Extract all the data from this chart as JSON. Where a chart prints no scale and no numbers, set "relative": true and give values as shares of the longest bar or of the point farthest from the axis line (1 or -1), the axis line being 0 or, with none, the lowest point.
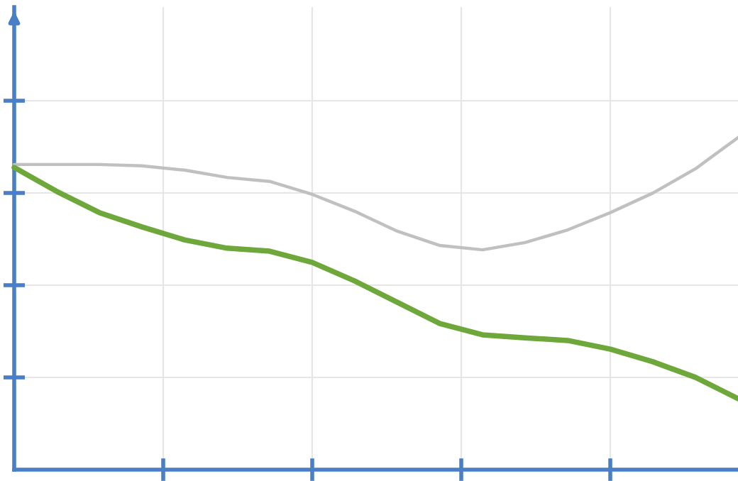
{
  "chart_data": {
    "type": "line",
    "relative": true,
    "grid": true,
    "marker": "none",
    "line_style": "solid",
    "categories": [
      null,
      null,
      null,
      null,
      null,
      null,
      null,
      null,
      null,
      null,
      null,
      null,
      null,
      null,
      null,
      null,
      null,
      null
    ],
    "series": [
      {
        "color": "#c0c0c0",
        "values": [
          0.919,
          0.919,
          0.919,
          0.915,
          0.902,
          0.88,
          0.868,
          0.829,
          0.778,
          0.718,
          0.675,
          0.662,
          0.684,
          0.722,
          0.774,
          0.833,
          0.906,
          1.0
        ]
      },
      {
        "color": "#6fa83a",
        "values": [
          0.91,
          0.838,
          0.774,
          0.731,
          0.692,
          0.667,
          0.658,
          0.624,
          0.568,
          0.504,
          0.44,
          0.406,
          0.397,
          0.389,
          0.363,
          0.325,
          0.278,
          0.214
        ]
      }
    ]
  }
}
